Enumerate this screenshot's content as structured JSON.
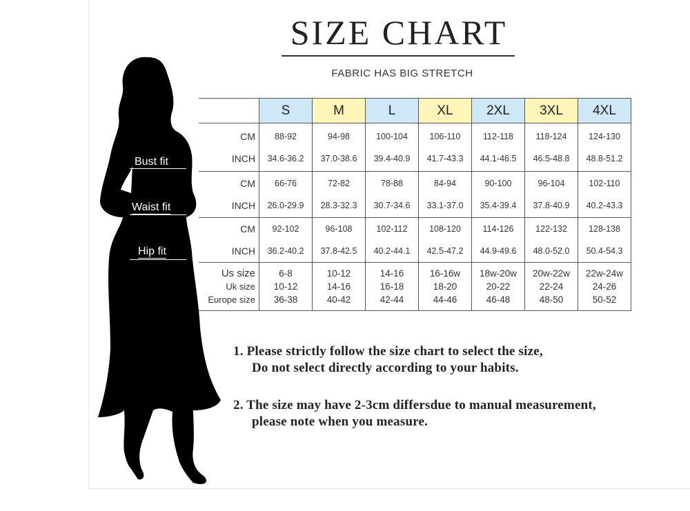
{
  "title": "SIZE CHART",
  "subtitle": "FABRIC HAS BIG STRETCH",
  "fit_labels": {
    "bust": "Bust fit",
    "waist": "Waist fit",
    "hip": "Hip fit"
  },
  "sizes": [
    "S",
    "M",
    "L",
    "XL",
    "2XL",
    "3XL",
    "4XL"
  ],
  "size_colors": {
    "blue": "#cfe8f7",
    "yellow": "#fdf6b8"
  },
  "units": {
    "cm": "CM",
    "inch": "INCH"
  },
  "bust": {
    "cm": [
      "88-92",
      "94-98",
      "100-104",
      "106-110",
      "112-118",
      "118-124",
      "124-130"
    ],
    "inch": [
      "34.6-36.2",
      "37.0-38.6",
      "39.4-40.9",
      "41.7-43.3",
      "44.1-46.5",
      "46.5-48.8",
      "48.8-51.2"
    ]
  },
  "waist": {
    "cm": [
      "66-76",
      "72-82",
      "78-88",
      "84-94",
      "90-100",
      "96-104",
      "102-110"
    ],
    "inch": [
      "26.0-29.9",
      "28.3-32.3",
      "30.7-34.6",
      "33.1-37.0",
      "35.4-39.4",
      "37.8-40.9",
      "40.2-43.3"
    ]
  },
  "hip": {
    "cm": [
      "92-102",
      "96-108",
      "102-112",
      "108-120",
      "114-126",
      "122-132",
      "128-138"
    ],
    "inch": [
      "36.2-40.2",
      "37.8-42.5",
      "40.2-44.1",
      "42.5-47.2",
      "44.9-49.6",
      "48.0-52.0",
      "50.4-54.3"
    ]
  },
  "conversion": {
    "labels": [
      "Us size",
      "Uk size",
      "Europe size"
    ],
    "us": [
      "6-8",
      "10-12",
      "14-16",
      "16-16w",
      "18w-20w",
      "20w-22w",
      "22w-24w"
    ],
    "uk": [
      "10-12",
      "14-16",
      "16-18",
      "18-20",
      "20-22",
      "22-24",
      "24-26"
    ],
    "eu": [
      "36-38",
      "40-42",
      "42-44",
      "44-46",
      "46-48",
      "48-50",
      "50-52"
    ]
  },
  "notes": [
    {
      "line1": "1.  Please strictly follow the size chart to select the size,",
      "line2": "Do not select directly according to your habits."
    },
    {
      "line1": "2.  The size may have 2-3cm differsdue to manual measurement,",
      "line2": "please note when you measure."
    }
  ]
}
